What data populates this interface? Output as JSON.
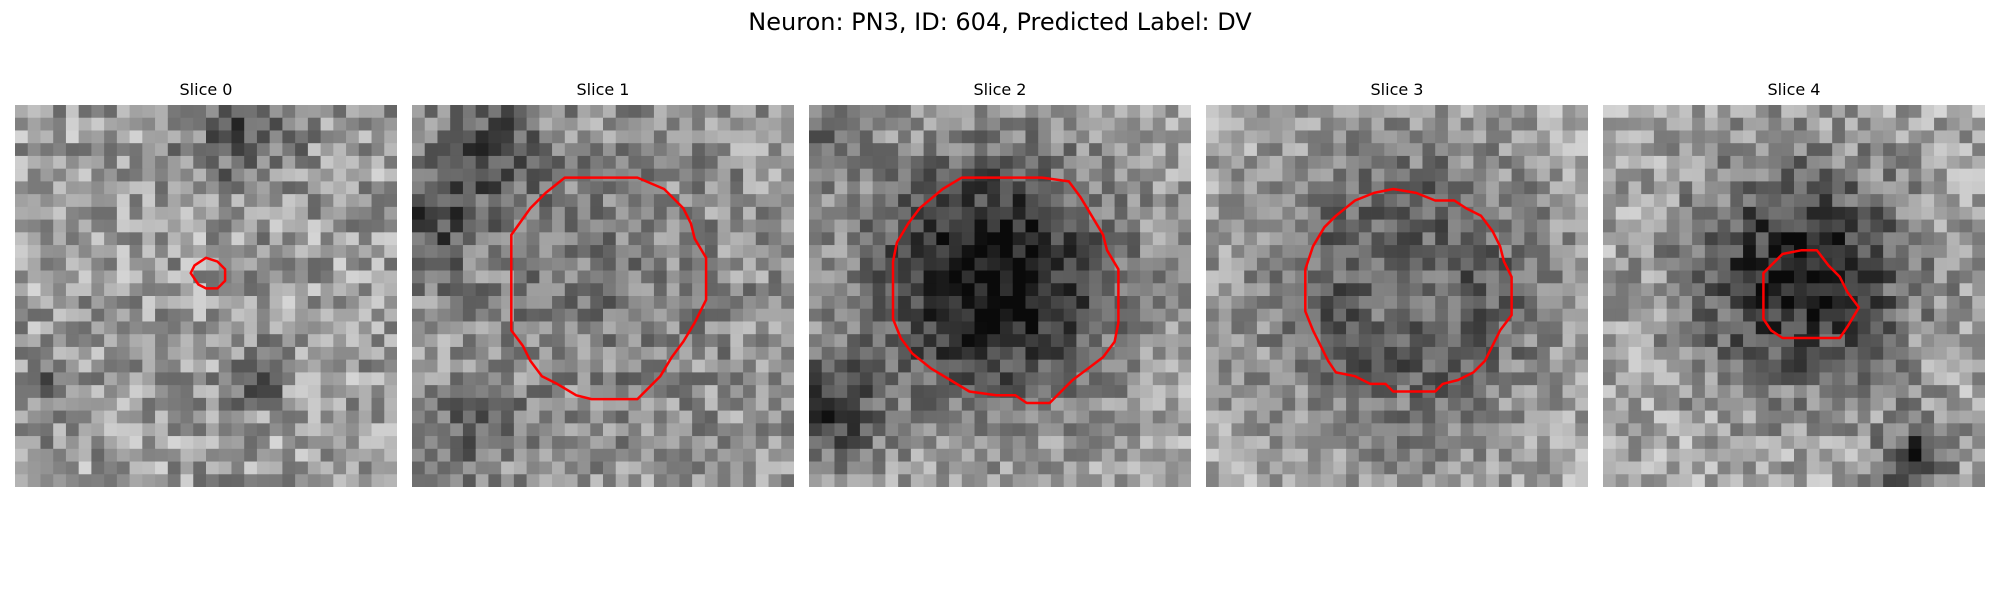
{
  "figure": {
    "title": "Neuron: PN3, ID: 604, Predicted Label: DV"
  },
  "panels": [
    {
      "title": "Slice 0",
      "contour": [
        [
          0.5,
          0.4
        ],
        [
          0.47,
          0.42
        ],
        [
          0.46,
          0.44
        ],
        [
          0.48,
          0.47
        ],
        [
          0.5,
          0.48
        ],
        [
          0.53,
          0.48
        ],
        [
          0.55,
          0.46
        ],
        [
          0.55,
          0.43
        ],
        [
          0.53,
          0.41
        ]
      ]
    },
    {
      "title": "Slice 1",
      "contour": [
        [
          0.47,
          0.19
        ],
        [
          0.4,
          0.19
        ],
        [
          0.35,
          0.23
        ],
        [
          0.31,
          0.27
        ],
        [
          0.26,
          0.34
        ],
        [
          0.26,
          0.59
        ],
        [
          0.29,
          0.63
        ],
        [
          0.31,
          0.67
        ],
        [
          0.34,
          0.71
        ],
        [
          0.38,
          0.73
        ],
        [
          0.43,
          0.76
        ],
        [
          0.47,
          0.77
        ],
        [
          0.59,
          0.77
        ],
        [
          0.62,
          0.74
        ],
        [
          0.65,
          0.71
        ],
        [
          0.68,
          0.66
        ],
        [
          0.71,
          0.62
        ],
        [
          0.74,
          0.57
        ],
        [
          0.77,
          0.51
        ],
        [
          0.77,
          0.4
        ],
        [
          0.74,
          0.35
        ],
        [
          0.73,
          0.31
        ],
        [
          0.71,
          0.27
        ],
        [
          0.66,
          0.22
        ],
        [
          0.59,
          0.19
        ]
      ]
    },
    {
      "title": "Slice 2",
      "contour": [
        [
          0.46,
          0.19
        ],
        [
          0.4,
          0.19
        ],
        [
          0.35,
          0.22
        ],
        [
          0.29,
          0.27
        ],
        [
          0.26,
          0.31
        ],
        [
          0.23,
          0.36
        ],
        [
          0.22,
          0.41
        ],
        [
          0.22,
          0.56
        ],
        [
          0.24,
          0.61
        ],
        [
          0.27,
          0.65
        ],
        [
          0.32,
          0.69
        ],
        [
          0.37,
          0.72
        ],
        [
          0.42,
          0.75
        ],
        [
          0.49,
          0.76
        ],
        [
          0.54,
          0.76
        ],
        [
          0.57,
          0.78
        ],
        [
          0.63,
          0.78
        ],
        [
          0.66,
          0.75
        ],
        [
          0.69,
          0.72
        ],
        [
          0.73,
          0.69
        ],
        [
          0.77,
          0.66
        ],
        [
          0.8,
          0.62
        ],
        [
          0.81,
          0.57
        ],
        [
          0.81,
          0.43
        ],
        [
          0.78,
          0.38
        ],
        [
          0.77,
          0.34
        ],
        [
          0.74,
          0.29
        ],
        [
          0.71,
          0.24
        ],
        [
          0.68,
          0.2
        ],
        [
          0.61,
          0.19
        ]
      ]
    },
    {
      "title": "Slice 3",
      "contour": [
        [
          0.49,
          0.22
        ],
        [
          0.44,
          0.23
        ],
        [
          0.39,
          0.25
        ],
        [
          0.34,
          0.29
        ],
        [
          0.31,
          0.32
        ],
        [
          0.28,
          0.37
        ],
        [
          0.26,
          0.43
        ],
        [
          0.26,
          0.54
        ],
        [
          0.28,
          0.59
        ],
        [
          0.3,
          0.63
        ],
        [
          0.32,
          0.67
        ],
        [
          0.34,
          0.7
        ],
        [
          0.39,
          0.71
        ],
        [
          0.43,
          0.73
        ],
        [
          0.47,
          0.73
        ],
        [
          0.49,
          0.75
        ],
        [
          0.6,
          0.75
        ],
        [
          0.62,
          0.73
        ],
        [
          0.66,
          0.72
        ],
        [
          0.7,
          0.7
        ],
        [
          0.73,
          0.67
        ],
        [
          0.75,
          0.63
        ],
        [
          0.77,
          0.59
        ],
        [
          0.8,
          0.55
        ],
        [
          0.8,
          0.45
        ],
        [
          0.78,
          0.41
        ],
        [
          0.77,
          0.37
        ],
        [
          0.75,
          0.33
        ],
        [
          0.72,
          0.29
        ],
        [
          0.68,
          0.27
        ],
        [
          0.65,
          0.25
        ],
        [
          0.6,
          0.25
        ],
        [
          0.55,
          0.23
        ]
      ]
    },
    {
      "title": "Slice 4",
      "contour": [
        [
          0.52,
          0.38
        ],
        [
          0.47,
          0.39
        ],
        [
          0.44,
          0.42
        ],
        [
          0.42,
          0.44
        ],
        [
          0.42,
          0.56
        ],
        [
          0.44,
          0.59
        ],
        [
          0.47,
          0.61
        ],
        [
          0.62,
          0.61
        ],
        [
          0.64,
          0.58
        ],
        [
          0.67,
          0.53
        ],
        [
          0.64,
          0.49
        ],
        [
          0.62,
          0.45
        ],
        [
          0.59,
          0.42
        ],
        [
          0.56,
          0.38
        ]
      ]
    }
  ]
}
